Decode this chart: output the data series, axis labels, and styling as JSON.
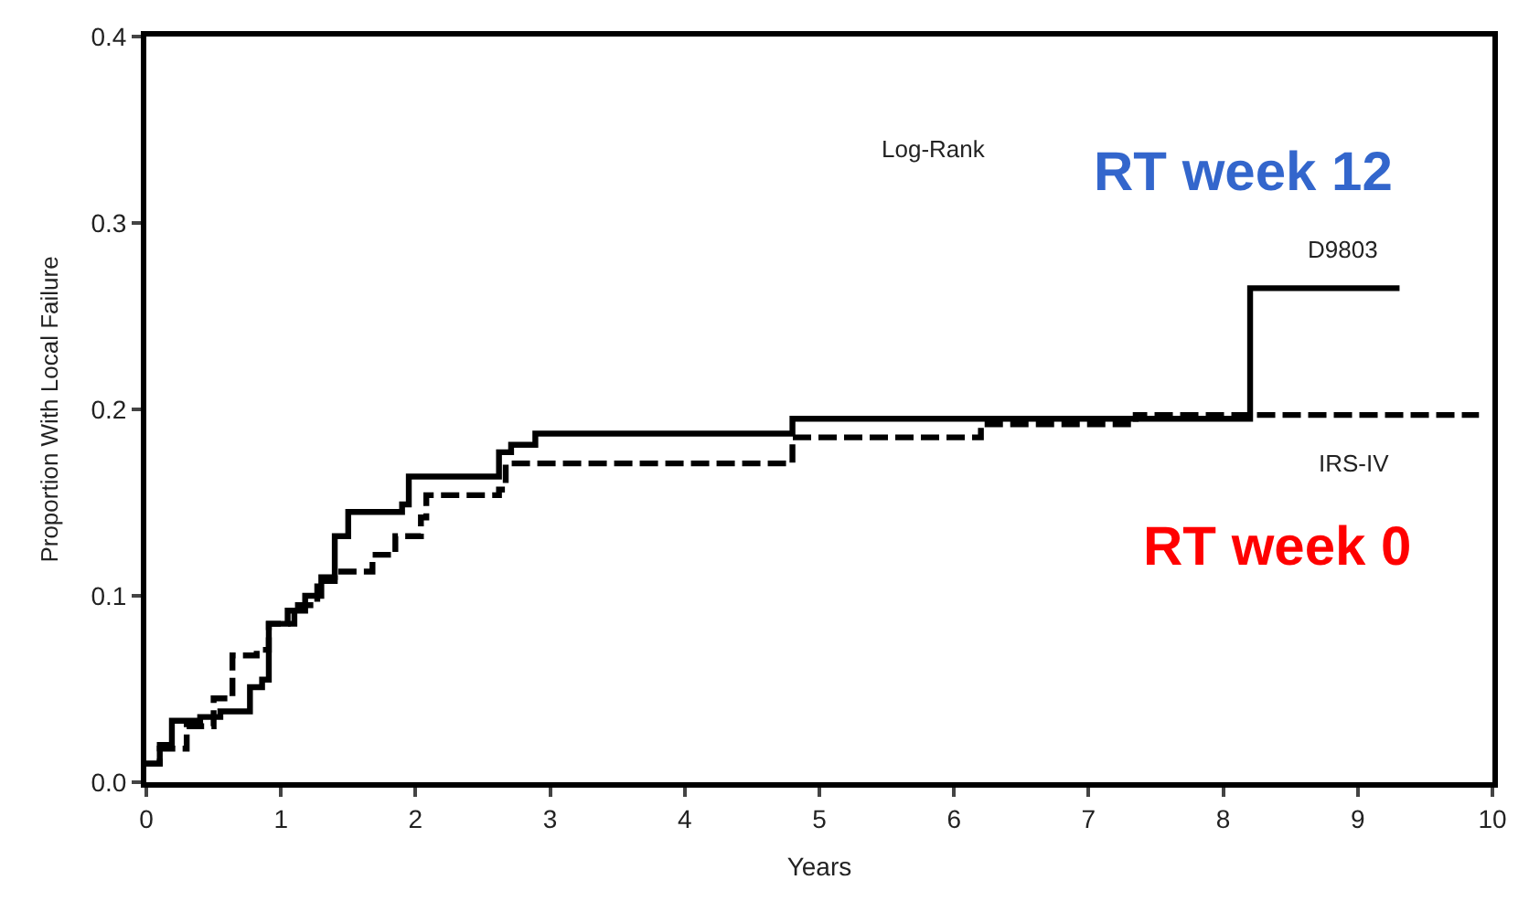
{
  "chart_data": {
    "type": "step",
    "xlabel": "Years",
    "ylabel": "Proportion With Local Failure",
    "xlim": [
      0,
      10
    ],
    "xticks": [
      0,
      1,
      2,
      3,
      4,
      5,
      6,
      7,
      8,
      9,
      10
    ],
    "ylim": [
      0,
      0.4
    ],
    "yticks": [
      {
        "value": 0,
        "label": "0.0"
      },
      {
        "value": 0.1,
        "label": "0.1"
      },
      {
        "value": 0.2,
        "label": "0.2"
      },
      {
        "value": 0.3,
        "label": "0.3"
      },
      {
        "value": 0.4,
        "label": "0.4"
      }
    ],
    "legend": false,
    "marker": "none",
    "series": [
      {
        "name": "D9803",
        "color": "#000000",
        "line_style": "solid",
        "x": [
          0,
          0.1,
          0.19,
          0.4,
          0.55,
          0.77,
          0.86,
          0.91,
          1.05,
          1.18,
          1.3,
          1.4,
          1.5,
          1.9,
          1.95,
          2.49,
          2.62,
          2.71,
          2.89,
          4.8,
          8.2,
          9.31
        ],
        "values": [
          0.01,
          0.02,
          0.033,
          0.035,
          0.038,
          0.051,
          0.055,
          0.085,
          0.092,
          0.1,
          0.11,
          0.132,
          0.145,
          0.149,
          0.164,
          0.164,
          0.177,
          0.181,
          0.187,
          0.195,
          0.265,
          0.265
        ]
      },
      {
        "name": "IRS-IV",
        "color": "#000000",
        "line_style": "dashed",
        "x": [
          0,
          0.1,
          0.3,
          0.5,
          0.64,
          0.82,
          0.91,
          1.1,
          1.27,
          1.4,
          1.63,
          1.68,
          1.85,
          2.04,
          2.08,
          2.62,
          2.67,
          4.8,
          6.2,
          7.35,
          9.9
        ],
        "values": [
          0.01,
          0.018,
          0.03,
          0.045,
          0.068,
          0.071,
          0.085,
          0.095,
          0.108,
          0.113,
          0.113,
          0.122,
          0.132,
          0.142,
          0.154,
          0.157,
          0.171,
          0.185,
          0.192,
          0.197,
          0.197
        ]
      }
    ],
    "annotations": [
      "Log-Rank",
      "RT week 12",
      "RT week 0"
    ]
  }
}
